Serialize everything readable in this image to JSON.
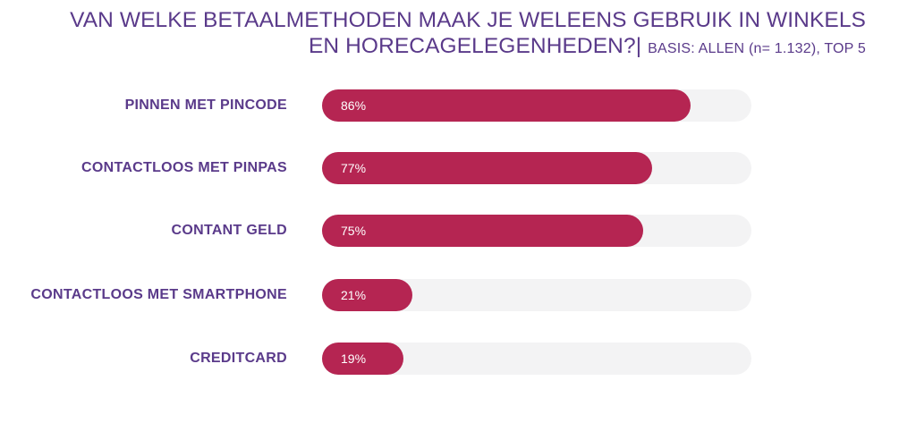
{
  "title": {
    "main": "VAN WELKE BETAALMETHODEN MAAK JE WELEENS GEBRUIK IN WINKELS",
    "main_line2": "EN HORECAGELEGENHEDEN?|",
    "basis": "BASIS: ALLEN (n= 1.132),  TOP 5"
  },
  "colors": {
    "title": "#5a3a8a",
    "bar": "#b52552",
    "track": "#f3f3f4",
    "value_text": "#ffffff"
  },
  "chart_data": {
    "type": "bar",
    "orientation": "horizontal",
    "categories": [
      "PINNEN MET PINCODE",
      "CONTACTLOOS MET PINPAS",
      "CONTANT GELD",
      "CONTACTLOOS MET SMARTPHONE",
      "CREDITCARD"
    ],
    "values": [
      86,
      77,
      75,
      21,
      19
    ],
    "value_labels": [
      "86%",
      "77%",
      "75%",
      "21%",
      "19%"
    ],
    "unit": "%",
    "xlim": [
      0,
      100
    ],
    "grid": false,
    "legend": "none"
  }
}
